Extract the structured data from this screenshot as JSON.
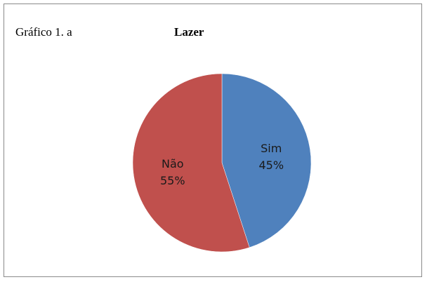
{
  "header": {
    "caption": "Gráfico 1. a",
    "title": "Lazer"
  },
  "chart_data": {
    "type": "pie",
    "title": "Lazer",
    "slices": [
      {
        "label": "Sim",
        "value": 45,
        "value_label": "45%",
        "color": "#4f81bd"
      },
      {
        "label": "Não",
        "value": 55,
        "value_label": "55%",
        "color": "#c0504d"
      }
    ],
    "start_angle": "top, clockwise",
    "legend": "none (labels on slices)"
  }
}
